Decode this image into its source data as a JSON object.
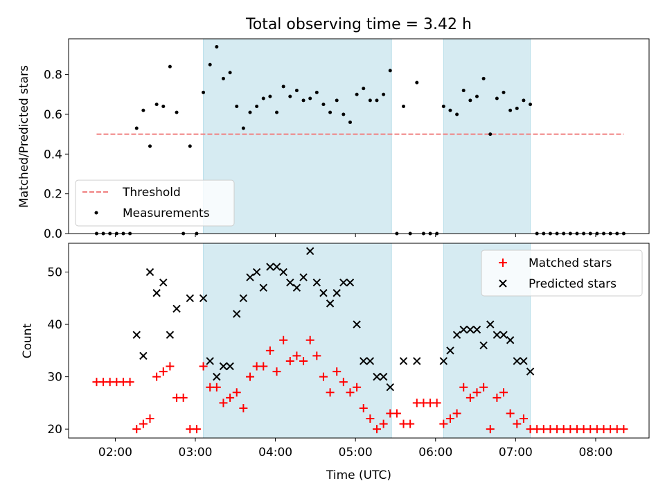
{
  "title": "Total observing time = 3.42 h",
  "xlabel": "Time (UTC)",
  "x_ticks": [
    "02:00",
    "03:00",
    "04:00",
    "05:00",
    "06:00",
    "07:00",
    "08:00"
  ],
  "chart_data": [
    {
      "type": "scatter",
      "panel": "top",
      "ylabel": "Matched/Predicted stars",
      "xlim": [
        "01:25",
        "08:40"
      ],
      "ylim": [
        0,
        0.98
      ],
      "y_ticks": [
        "0.0",
        "0.2",
        "0.4",
        "0.6",
        "0.8"
      ],
      "shaded_intervals": [
        [
          "03:06",
          "05:27"
        ],
        [
          "06:06",
          "07:11"
        ]
      ],
      "shade_color": "#add8e6",
      "threshold": {
        "name": "Threshold",
        "value": 0.5,
        "x_range": [
          "01:46",
          "08:21"
        ],
        "color": "#f08080"
      },
      "legend_position": "lower left",
      "series": [
        {
          "name": "Measurements",
          "color": "#000000",
          "x": [
            "01:46",
            "01:51",
            "01:56",
            "02:01",
            "02:06",
            "02:11",
            "02:16",
            "02:21",
            "02:26",
            "02:31",
            "02:36",
            "02:41",
            "02:46",
            "02:51",
            "02:56",
            "03:01",
            "03:06",
            "03:11",
            "03:16",
            "03:21",
            "03:26",
            "03:31",
            "03:36",
            "03:41",
            "03:46",
            "03:51",
            "03:56",
            "04:01",
            "04:06",
            "04:11",
            "04:16",
            "04:21",
            "04:26",
            "04:31",
            "04:36",
            "04:41",
            "04:46",
            "04:51",
            "04:56",
            "05:01",
            "05:06",
            "05:11",
            "05:16",
            "05:21",
            "05:26",
            "05:31",
            "05:36",
            "05:41",
            "05:46",
            "05:51",
            "05:56",
            "06:01",
            "06:06",
            "06:11",
            "06:16",
            "06:21",
            "06:26",
            "06:31",
            "06:36",
            "06:41",
            "06:46",
            "06:51",
            "06:56",
            "07:01",
            "07:06",
            "07:11",
            "07:16",
            "07:21",
            "07:26",
            "07:31",
            "07:36",
            "07:41",
            "07:46",
            "07:51",
            "07:56",
            "08:01",
            "08:06",
            "08:11",
            "08:16",
            "08:21"
          ],
          "y": [
            0,
            0,
            0,
            0,
            0,
            0,
            0.53,
            0.62,
            0.44,
            0.65,
            0.64,
            0.84,
            0.61,
            0,
            0.44,
            0,
            0.71,
            0.85,
            0.94,
            0.78,
            0.81,
            0.64,
            0.53,
            0.61,
            0.64,
            0.68,
            0.69,
            0.61,
            0.74,
            0.69,
            0.72,
            0.67,
            0.68,
            0.71,
            0.65,
            0.61,
            0.67,
            0.6,
            0.56,
            0.7,
            0.73,
            0.67,
            0.67,
            0.7,
            0.82,
            0,
            0.64,
            0,
            0.76,
            0,
            0,
            0,
            0.64,
            0.62,
            0.6,
            0.72,
            0.67,
            0.69,
            0.78,
            0.5,
            0.68,
            0.71,
            0.62,
            0.63,
            0.67,
            0.65,
            0,
            0,
            0,
            0,
            0,
            0,
            0,
            0,
            0,
            0,
            0,
            0,
            0,
            0
          ]
        }
      ]
    },
    {
      "type": "scatter",
      "panel": "bottom",
      "ylabel": "Count",
      "xlim": [
        "01:25",
        "08:40"
      ],
      "ylim": [
        18.3,
        55.5
      ],
      "y_ticks": [
        "20",
        "30",
        "40",
        "50"
      ],
      "shaded_intervals": [
        [
          "03:06",
          "05:27"
        ],
        [
          "06:06",
          "07:11"
        ]
      ],
      "shade_color": "#add8e6",
      "legend_position": "top-right",
      "series": [
        {
          "name": "Matched stars",
          "marker": "+",
          "color": "#ff0000",
          "x": [
            "01:46",
            "01:51",
            "01:56",
            "02:01",
            "02:06",
            "02:11",
            "02:16",
            "02:21",
            "02:26",
            "02:31",
            "02:36",
            "02:41",
            "02:46",
            "02:51",
            "02:56",
            "03:01",
            "03:06",
            "03:11",
            "03:16",
            "03:21",
            "03:26",
            "03:31",
            "03:36",
            "03:41",
            "03:46",
            "03:51",
            "03:56",
            "04:01",
            "04:06",
            "04:11",
            "04:16",
            "04:21",
            "04:26",
            "04:31",
            "04:36",
            "04:41",
            "04:46",
            "04:51",
            "04:56",
            "05:01",
            "05:06",
            "05:11",
            "05:16",
            "05:21",
            "05:26",
            "05:31",
            "05:36",
            "05:41",
            "05:46",
            "05:51",
            "05:56",
            "06:01",
            "06:06",
            "06:11",
            "06:16",
            "06:21",
            "06:26",
            "06:31",
            "06:36",
            "06:41",
            "06:46",
            "06:51",
            "06:56",
            "07:01",
            "07:06",
            "07:11",
            "07:16",
            "07:21",
            "07:26",
            "07:31",
            "07:36",
            "07:41",
            "07:46",
            "07:51",
            "07:56",
            "08:01",
            "08:06",
            "08:11",
            "08:16",
            "08:21"
          ],
          "y": [
            29,
            29,
            29,
            29,
            29,
            29,
            20,
            21,
            22,
            30,
            31,
            32,
            26,
            26,
            20,
            20,
            32,
            28,
            28,
            25,
            26,
            27,
            24,
            30,
            32,
            32,
            35,
            31,
            37,
            33,
            34,
            33,
            37,
            34,
            30,
            27,
            31,
            29,
            27,
            28,
            24,
            22,
            20,
            21,
            23,
            23,
            21,
            21,
            25,
            25,
            25,
            25,
            21,
            22,
            23,
            28,
            26,
            27,
            28,
            20,
            26,
            27,
            23,
            21,
            22,
            20,
            20,
            20,
            20,
            20,
            20,
            20,
            20,
            20,
            20,
            20,
            20,
            20,
            20,
            20
          ]
        },
        {
          "name": "Predicted stars",
          "marker": "x",
          "color": "#000000",
          "x": [
            "02:16",
            "02:21",
            "02:26",
            "02:31",
            "02:36",
            "02:41",
            "02:46",
            "02:56",
            "03:06",
            "03:11",
            "03:16",
            "03:21",
            "03:26",
            "03:31",
            "03:36",
            "03:41",
            "03:46",
            "03:51",
            "03:56",
            "04:01",
            "04:06",
            "04:11",
            "04:16",
            "04:21",
            "04:26",
            "04:31",
            "04:36",
            "04:41",
            "04:46",
            "04:51",
            "04:56",
            "05:01",
            "05:06",
            "05:11",
            "05:16",
            "05:21",
            "05:26",
            "05:36",
            "05:46",
            "06:06",
            "06:11",
            "06:16",
            "06:21",
            "06:26",
            "06:31",
            "06:36",
            "06:41",
            "06:46",
            "06:51",
            "06:56",
            "07:01",
            "07:06",
            "07:11"
          ],
          "y": [
            38,
            34,
            50,
            46,
            48,
            38,
            43,
            45,
            45,
            33,
            30,
            32,
            32,
            42,
            45,
            49,
            50,
            47,
            51,
            51,
            50,
            48,
            47,
            49,
            54,
            48,
            46,
            44,
            46,
            48,
            48,
            40,
            33,
            33,
            30,
            30,
            28,
            33,
            33,
            33,
            35,
            38,
            39,
            39,
            39,
            36,
            40,
            38,
            38,
            37,
            33,
            33,
            31
          ]
        }
      ]
    }
  ]
}
